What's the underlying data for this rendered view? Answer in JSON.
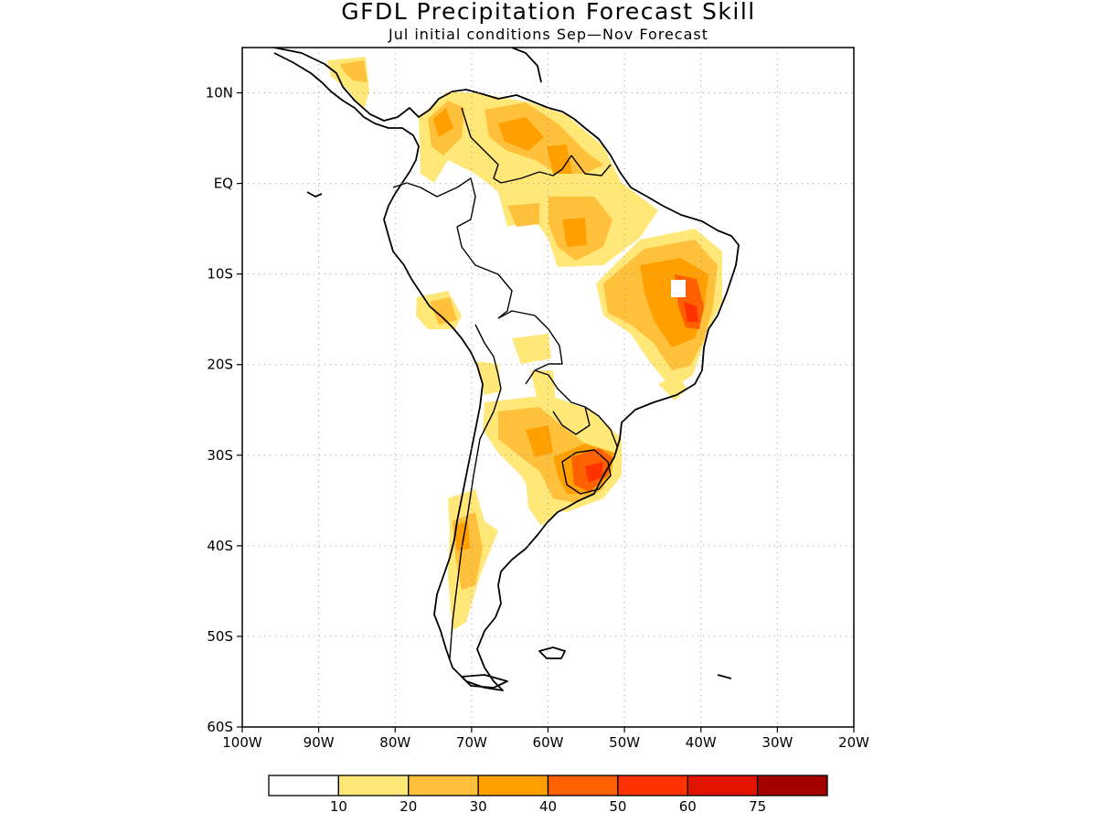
{
  "title": "GFDL Precipitation Forecast Skill",
  "subtitle": "Jul initial conditions  Sep—Nov Forecast",
  "map": {
    "region": "South America",
    "lon_range": [
      -100,
      -20
    ],
    "lat_range": [
      -60,
      15
    ],
    "x_ticks": [
      {
        "value": -100,
        "label": "100W"
      },
      {
        "value": -90,
        "label": "90W"
      },
      {
        "value": -80,
        "label": "80W"
      },
      {
        "value": -70,
        "label": "70W"
      },
      {
        "value": -60,
        "label": "60W"
      },
      {
        "value": -50,
        "label": "50W"
      },
      {
        "value": -40,
        "label": "40W"
      },
      {
        "value": -30,
        "label": "30W"
      },
      {
        "value": -20,
        "label": "20W"
      }
    ],
    "y_ticks": [
      {
        "value": 10,
        "label": "10N"
      },
      {
        "value": 0,
        "label": "EQ"
      },
      {
        "value": -10,
        "label": "10S"
      },
      {
        "value": -20,
        "label": "20S"
      },
      {
        "value": -30,
        "label": "30S"
      },
      {
        "value": -40,
        "label": "40S"
      },
      {
        "value": -50,
        "label": "50S"
      },
      {
        "value": -60,
        "label": "60S"
      }
    ],
    "grid": "dotted"
  },
  "legend": {
    "bins": [
      {
        "color": "#ffffff",
        "label": ""
      },
      {
        "color": "#ffe878",
        "label": "10"
      },
      {
        "color": "#ffc03c",
        "label": "20"
      },
      {
        "color": "#ffa000",
        "label": "30"
      },
      {
        "color": "#ff6000",
        "label": "40"
      },
      {
        "color": "#ff3200",
        "label": "50"
      },
      {
        "color": "#e01400",
        "label": "60"
      },
      {
        "color": "#a50000",
        "label": "75"
      }
    ]
  }
}
